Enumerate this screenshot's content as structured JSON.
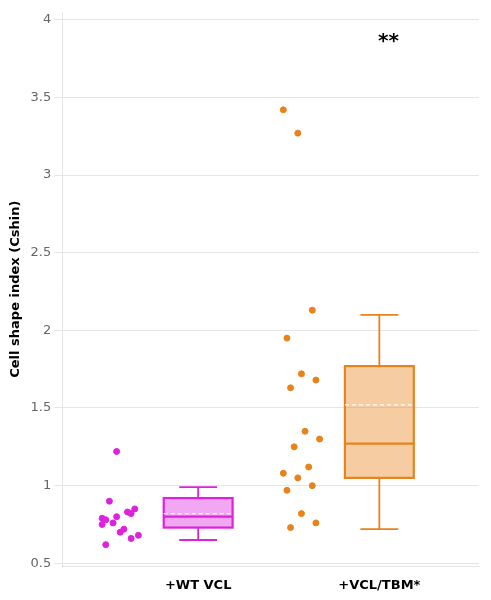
{
  "chart_data": {
    "type": "box",
    "ylabel": "Cell shape index (Cshin)",
    "categories": [
      "+WT VCL",
      "+VCL/TBM*"
    ],
    "colors": [
      "#DD22DD",
      "#E8821A"
    ],
    "boxes": [
      {
        "q1": 0.73,
        "median": 0.8,
        "mean": 0.82,
        "q3": 0.92,
        "whisker_low": 0.65,
        "whisker_high": 0.99
      },
      {
        "q1": 1.05,
        "median": 1.27,
        "mean": 1.52,
        "q3": 1.77,
        "whisker_low": 0.72,
        "whisker_high": 2.1
      }
    ],
    "points": [
      [
        0.75,
        0.8,
        0.82,
        0.78,
        0.7,
        0.85,
        0.9,
        0.72,
        0.68,
        0.76,
        0.83,
        0.79,
        1.22,
        0.66,
        0.62
      ],
      [
        3.42,
        3.27,
        2.13,
        1.95,
        1.72,
        1.68,
        1.63,
        1.35,
        1.3,
        1.25,
        1.12,
        1.08,
        1.05,
        1.0,
        0.97,
        0.82,
        0.76,
        0.73
      ]
    ],
    "annotations": [
      {
        "text": "**",
        "x": "+VCL/TBM*",
        "y": 3.92
      }
    ],
    "ylim": [
      0.48,
      4.05
    ],
    "yticks": [
      0.5,
      1,
      1.5,
      2,
      2.5,
      3,
      3.5,
      4
    ],
    "grid": "y"
  }
}
